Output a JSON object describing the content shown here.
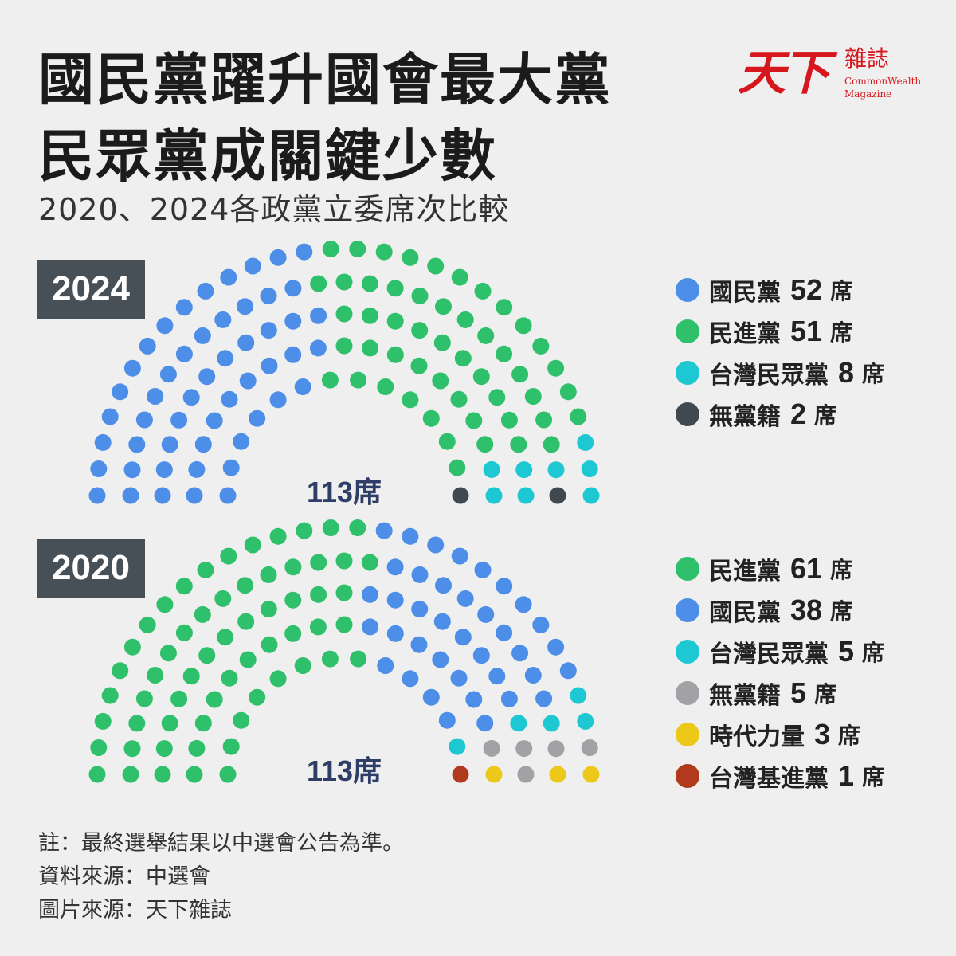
{
  "header": {
    "title_line1": "國民黨躍升國會最大黨",
    "title_line2": "民眾黨成關鍵少數",
    "subtitle": "2020、2024各政黨立委席次比較"
  },
  "logo": {
    "main": "天下",
    "sub": "雜誌",
    "en_line1": "CommonWealth",
    "en_line2": "Magazine"
  },
  "colors": {
    "kmt": "#4d8ee8",
    "dpp": "#2fc06b",
    "tpp": "#1ec8d2",
    "ind_2024": "#404850",
    "ind_2020": "#a0a2a5",
    "npp": "#ecc81a",
    "tsp": "#b03a1e"
  },
  "chart_data": [
    {
      "type": "parliament",
      "year_label": "2024",
      "total_label": "113席",
      "total": 113,
      "series": [
        {
          "name": "國民黨",
          "value": 52,
          "unit": "席",
          "color": "#4d8ee8"
        },
        {
          "name": "民進黨",
          "value": 51,
          "unit": "席",
          "color": "#2fc06b"
        },
        {
          "name": "台灣民眾黨",
          "value": 8,
          "unit": "席",
          "color": "#1ec8d2"
        },
        {
          "name": "無黨籍",
          "value": 2,
          "unit": "席",
          "color": "#404850"
        }
      ]
    },
    {
      "type": "parliament",
      "year_label": "2020",
      "total_label": "113席",
      "total": 113,
      "series": [
        {
          "name": "民進黨",
          "value": 61,
          "unit": "席",
          "color": "#2fc06b"
        },
        {
          "name": "國民黨",
          "value": 38,
          "unit": "席",
          "color": "#4d8ee8"
        },
        {
          "name": "台灣民眾黨",
          "value": 5,
          "unit": "席",
          "color": "#1ec8d2"
        },
        {
          "name": "無黨籍",
          "value": 5,
          "unit": "席",
          "color": "#a0a2a5"
        },
        {
          "name": "時代力量",
          "value": 3,
          "unit": "席",
          "color": "#ecc81a"
        },
        {
          "name": "台灣基進黨",
          "value": 1,
          "unit": "席",
          "color": "#b03a1e"
        }
      ]
    }
  ],
  "notes": {
    "line1": "註：最終選舉結果以中選會公告為準。",
    "line2": "資料來源：中選會",
    "line3": "圖片來源：天下雜誌"
  }
}
